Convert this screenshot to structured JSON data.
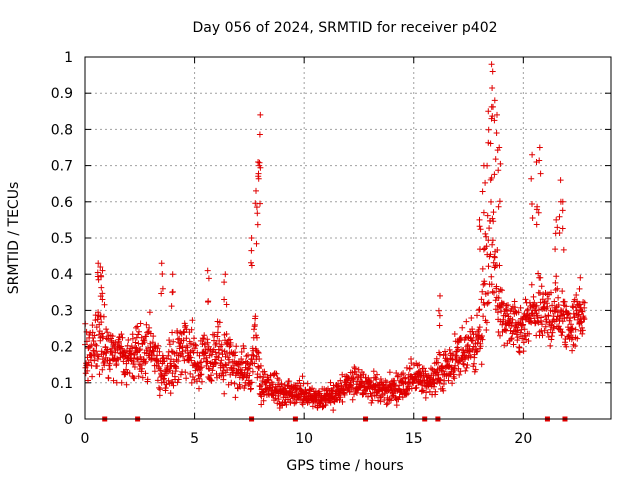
{
  "chart_data": {
    "type": "scatter",
    "title": "Day 056 of 2024, SRMTID for receiver p402",
    "xlabel": "GPS time / hours",
    "ylabel": "SRMTID / TECUs",
    "xlim": [
      0,
      24
    ],
    "ylim": [
      0,
      1
    ],
    "xticks": [
      0,
      5,
      10,
      15,
      20
    ],
    "xtick_labels": [
      "0",
      "5",
      "10",
      "15",
      "20"
    ],
    "yticks": [
      0,
      0.1,
      0.2,
      0.3,
      0.4,
      0.5,
      0.6,
      0.7,
      0.8,
      0.9,
      1
    ],
    "ytick_labels": [
      "0",
      "0.1",
      "0.2",
      "0.3",
      "0.4",
      "0.5",
      "0.6",
      "0.7",
      "0.8",
      "0.9",
      "1"
    ],
    "grid": true,
    "series": [
      {
        "name": "SRMTID",
        "marker": "plus",
        "color": "#e00000",
        "profile_hours": [
          0,
          0.5,
          1,
          1.5,
          2,
          2.5,
          3,
          3.5,
          4,
          4.5,
          5,
          5.5,
          6,
          6.5,
          7,
          7.5,
          7.8,
          8,
          8.5,
          9,
          9.5,
          10,
          10.5,
          11,
          11.5,
          12,
          12.5,
          13,
          13.5,
          14,
          14.5,
          15,
          15.5,
          16,
          16.5,
          17,
          17.5,
          18,
          18.5,
          19,
          19.5,
          20,
          20.5,
          21,
          21.5,
          22,
          22.5,
          22.8
        ],
        "profile_median": [
          0.16,
          0.22,
          0.2,
          0.17,
          0.17,
          0.18,
          0.2,
          0.13,
          0.16,
          0.2,
          0.17,
          0.16,
          0.18,
          0.15,
          0.14,
          0.12,
          0.2,
          0.1,
          0.09,
          0.07,
          0.07,
          0.07,
          0.06,
          0.06,
          0.07,
          0.09,
          0.11,
          0.09,
          0.08,
          0.08,
          0.09,
          0.12,
          0.1,
          0.12,
          0.14,
          0.17,
          0.2,
          0.22,
          0.5,
          0.28,
          0.25,
          0.24,
          0.3,
          0.28,
          0.3,
          0.26,
          0.28,
          0.3
        ],
        "profile_spread": [
          0.08,
          0.1,
          0.09,
          0.07,
          0.08,
          0.08,
          0.09,
          0.06,
          0.08,
          0.09,
          0.08,
          0.08,
          0.09,
          0.08,
          0.07,
          0.06,
          0.12,
          0.05,
          0.05,
          0.04,
          0.04,
          0.04,
          0.03,
          0.03,
          0.04,
          0.04,
          0.05,
          0.04,
          0.04,
          0.04,
          0.04,
          0.05,
          0.04,
          0.05,
          0.06,
          0.07,
          0.08,
          0.1,
          0.22,
          0.08,
          0.07,
          0.08,
          0.1,
          0.09,
          0.1,
          0.08,
          0.08,
          0.06
        ],
        "peaks": [
          {
            "x": 0.6,
            "y": 0.43
          },
          {
            "x": 0.7,
            "y": 0.42
          },
          {
            "x": 0.8,
            "y": 0.41
          },
          {
            "x": 3.5,
            "y": 0.43
          },
          {
            "x": 4.0,
            "y": 0.4
          },
          {
            "x": 5.6,
            "y": 0.41
          },
          {
            "x": 6.4,
            "y": 0.4
          },
          {
            "x": 7.6,
            "y": 0.5
          },
          {
            "x": 7.8,
            "y": 0.63
          },
          {
            "x": 7.9,
            "y": 0.71
          },
          {
            "x": 7.95,
            "y": 0.7
          },
          {
            "x": 8.0,
            "y": 0.84
          },
          {
            "x": 16.2,
            "y": 0.34
          },
          {
            "x": 18.0,
            "y": 0.55
          },
          {
            "x": 18.2,
            "y": 0.7
          },
          {
            "x": 18.4,
            "y": 0.85
          },
          {
            "x": 18.55,
            "y": 0.98
          },
          {
            "x": 18.6,
            "y": 0.96
          },
          {
            "x": 18.7,
            "y": 0.88
          },
          {
            "x": 18.8,
            "y": 0.84
          },
          {
            "x": 18.9,
            "y": 0.75
          },
          {
            "x": 20.4,
            "y": 0.73
          },
          {
            "x": 20.6,
            "y": 0.71
          },
          {
            "x": 20.75,
            "y": 0.75
          },
          {
            "x": 21.5,
            "y": 0.55
          },
          {
            "x": 21.7,
            "y": 0.66
          },
          {
            "x": 21.8,
            "y": 0.6
          },
          {
            "x": 22.6,
            "y": 0.39
          }
        ]
      }
    ],
    "zero_markers": [
      0.9,
      2.4,
      7.6,
      9.6,
      12.8,
      15.5,
      16.1,
      21.1,
      21.9
    ]
  }
}
